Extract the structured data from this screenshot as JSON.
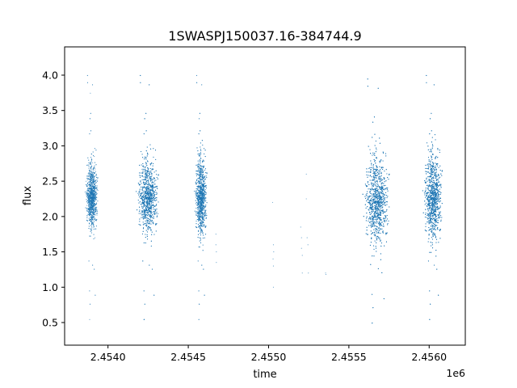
{
  "chart_data": {
    "type": "scatter",
    "title": "1SWASPJ150037.16-384744.9",
    "xlabel": "time",
    "ylabel": "flux",
    "x_offset_label": "1e6",
    "x_ticks": [
      2.454,
      2.4545,
      2.455,
      2.4555,
      2.456
    ],
    "x_tick_labels": [
      "2.4540",
      "2.4545",
      "2.4550",
      "2.4555",
      "2.4560"
    ],
    "y_ticks": [
      0.5,
      1.0,
      1.5,
      2.0,
      2.5,
      3.0,
      3.5,
      4.0
    ],
    "y_tick_labels": [
      "0.5",
      "1.0",
      "1.5",
      "2.0",
      "2.5",
      "3.0",
      "3.5",
      "4.0"
    ],
    "xlim": [
      2453730,
      2456225
    ],
    "ylim": [
      0.18,
      4.4
    ],
    "grid": false,
    "point_color": "#1f77b4",
    "clusters": [
      {
        "x_start": 2453855,
        "x_end": 2453945,
        "mean": 2.3,
        "spread": 0.3,
        "n": 1700
      },
      {
        "x_start": 2454170,
        "x_end": 2454330,
        "mean": 2.3,
        "spread": 0.35,
        "n": 2600
      },
      {
        "x_start": 2454535,
        "x_end": 2454625,
        "mean": 2.3,
        "spread": 0.38,
        "n": 2200
      },
      {
        "x_start": 2455580,
        "x_end": 2455770,
        "mean": 2.25,
        "spread": 0.42,
        "n": 3200
      },
      {
        "x_start": 2455955,
        "x_end": 2456095,
        "mean": 2.3,
        "spread": 0.42,
        "n": 3000
      }
    ],
    "sparse_points": [
      {
        "x": 2454672,
        "y": 1.75
      },
      {
        "x": 2454672,
        "y": 1.6
      },
      {
        "x": 2454675,
        "y": 1.5
      },
      {
        "x": 2454675,
        "y": 1.35
      },
      {
        "x": 2455025,
        "y": 2.2
      },
      {
        "x": 2455030,
        "y": 1.6
      },
      {
        "x": 2455032,
        "y": 1.5
      },
      {
        "x": 2455028,
        "y": 1.4
      },
      {
        "x": 2455030,
        "y": 1.3
      },
      {
        "x": 2455030,
        "y": 1.0
      },
      {
        "x": 2455200,
        "y": 1.85
      },
      {
        "x": 2455205,
        "y": 1.7
      },
      {
        "x": 2455205,
        "y": 1.55
      },
      {
        "x": 2455210,
        "y": 1.45
      },
      {
        "x": 2455210,
        "y": 1.2
      },
      {
        "x": 2455235,
        "y": 2.6
      },
      {
        "x": 2455235,
        "y": 2.25
      },
      {
        "x": 2455240,
        "y": 1.7
      },
      {
        "x": 2455245,
        "y": 1.6
      },
      {
        "x": 2455248,
        "y": 1.2
      },
      {
        "x": 2455355,
        "y": 1.2
      },
      {
        "x": 2455357,
        "y": 1.18
      }
    ]
  }
}
